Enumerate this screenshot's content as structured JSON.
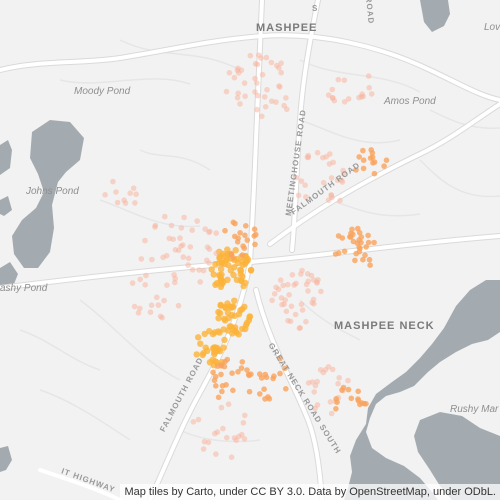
{
  "map": {
    "places": [
      {
        "id": "mashpee",
        "text": "MASHPEE",
        "kind": "town"
      },
      {
        "id": "mashpee-neck",
        "text": "MASHPEE NECK",
        "kind": "town"
      },
      {
        "id": "moody-pond",
        "text": "Moody Pond",
        "kind": "water"
      },
      {
        "id": "amos-pond",
        "text": "Amos Pond",
        "kind": "water"
      },
      {
        "id": "johns-pond",
        "text": "Johns Pond",
        "kind": "water"
      },
      {
        "id": "ashy-pond",
        "text": "ashy Pond",
        "kind": "water"
      },
      {
        "id": "rushy-marsh",
        "text": "Rushy Mar",
        "kind": "water"
      },
      {
        "id": "lovells",
        "text": "Lov",
        "kind": "water"
      },
      {
        "id": "meetinghouse-road",
        "text": "MEETINGHOUSE ROAD",
        "kind": "road"
      },
      {
        "id": "falmouth-road-ne",
        "text": "FALMOUTH ROAD",
        "kind": "road"
      },
      {
        "id": "falmouth-road-sw",
        "text": "FALMOUTH ROAD",
        "kind": "road"
      },
      {
        "id": "great-neck-road",
        "text": "GREAT NECK ROAD SOUTH",
        "kind": "road"
      },
      {
        "id": "edge-road-s",
        "text": "S",
        "kind": "road"
      },
      {
        "id": "edge-road-top",
        "text": "ROAD",
        "kind": "road"
      },
      {
        "id": "highway",
        "text": "IT HIGHWAY",
        "kind": "road"
      }
    ],
    "attribution": "Map tiles by Carto, under CC BY 3.0. Data by OpenStreetMap, under ODbL.",
    "colors": {
      "land": "#f2f2f2",
      "water": "#a4abb0",
      "road": "#ffffff",
      "minor_road": "#e4e4e4",
      "point_light": "#f7b7a3",
      "point_medium": "#f9a25c",
      "point_strong": "#fbb33a"
    }
  }
}
